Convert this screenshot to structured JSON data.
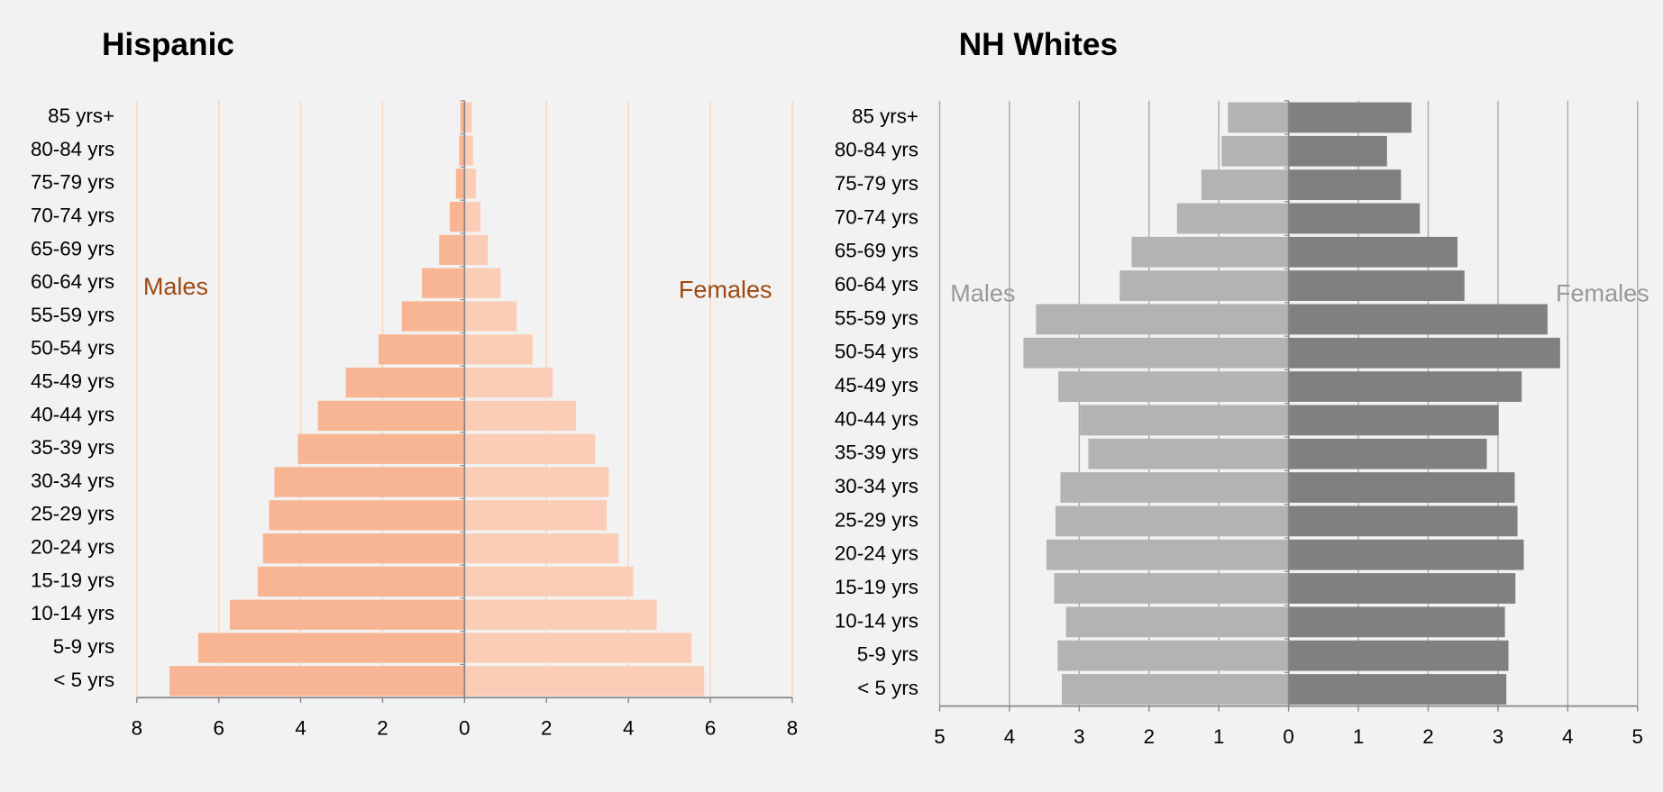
{
  "chart_data": [
    {
      "type": "pyramid",
      "title": "Hispanic",
      "categories": [
        "< 5 yrs",
        "5-9 yrs",
        "10-14 yrs",
        "15-19 yrs",
        "20-24 yrs",
        "25-29 yrs",
        "30-34 yrs",
        "35-39 yrs",
        "40-44 yrs",
        "45-49 yrs",
        "50-54 yrs",
        "55-59 yrs",
        "60-64 yrs",
        "65-69 yrs",
        "70-74 yrs",
        "75-79 yrs",
        "80-84 yrs",
        "85 yrs+"
      ],
      "series": [
        {
          "name": "Males",
          "color": "#f8b593",
          "values": [
            7.2,
            6.5,
            5.73,
            5.05,
            4.92,
            4.77,
            4.64,
            4.07,
            3.58,
            2.9,
            2.1,
            1.53,
            1.04,
            0.62,
            0.36,
            0.21,
            0.13,
            0.1
          ]
        },
        {
          "name": "Females",
          "color": "#fccdb6",
          "values": [
            5.85,
            5.54,
            4.69,
            4.12,
            3.76,
            3.47,
            3.52,
            3.19,
            2.72,
            2.15,
            1.66,
            1.27,
            0.88,
            0.57,
            0.39,
            0.28,
            0.21,
            0.18
          ]
        }
      ],
      "xlim": [
        -8,
        8
      ],
      "xticks": [
        {
          "value": -8,
          "label": "8"
        },
        {
          "value": -6,
          "label": "6"
        },
        {
          "value": -4,
          "label": "4"
        },
        {
          "value": -2,
          "label": "2"
        },
        0,
        2,
        4,
        6,
        8
      ],
      "grid": true,
      "grid_color": "#fbd5bd",
      "annotation_color": "#9c4a12"
    },
    {
      "type": "pyramid",
      "title": "NH Whites",
      "categories": [
        "< 5 yrs",
        "5-9 yrs",
        "10-14 yrs",
        "15-19 yrs",
        "20-24 yrs",
        "25-29 yrs",
        "30-34 yrs",
        "35-39 yrs",
        "40-44 yrs",
        "45-49 yrs",
        "50-54 yrs",
        "55-59 yrs",
        "60-64 yrs",
        "65-69 yrs",
        "70-74 yrs",
        "75-79 yrs",
        "80-84 yrs",
        "85 yrs+"
      ],
      "series": [
        {
          "name": "Males",
          "color": "#b3b3b3",
          "values": [
            3.25,
            3.31,
            3.19,
            3.36,
            3.47,
            3.34,
            3.27,
            2.87,
            2.99,
            3.3,
            3.8,
            3.62,
            2.42,
            2.25,
            1.6,
            1.25,
            0.96,
            0.87
          ]
        },
        {
          "name": "Females",
          "color": "#808080",
          "values": [
            3.12,
            3.15,
            3.1,
            3.25,
            3.37,
            3.28,
            3.24,
            2.84,
            3.01,
            3.34,
            3.89,
            3.71,
            2.52,
            2.42,
            1.88,
            1.61,
            1.41,
            1.76
          ]
        }
      ],
      "xlim": [
        -5,
        5
      ],
      "xticks": [
        {
          "value": -5,
          "label": "5"
        },
        {
          "value": -4,
          "label": "4"
        },
        {
          "value": -3,
          "label": "3"
        },
        {
          "value": -2,
          "label": "2"
        },
        {
          "value": -1,
          "label": "1"
        },
        0,
        1,
        2,
        3,
        4,
        5
      ],
      "grid": true,
      "grid_color": "#aaaaaa",
      "annotation_color": "#999999"
    }
  ]
}
